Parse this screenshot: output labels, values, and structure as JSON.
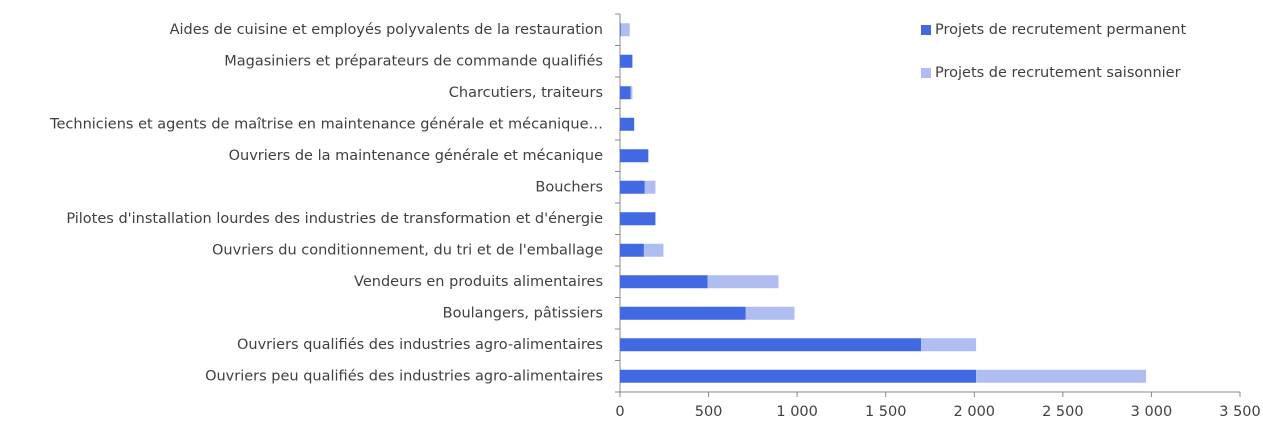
{
  "chart_data": {
    "type": "stacked_barh",
    "categories": [
      "Aides de cuisine et employés polyvalents de la restauration",
      "Magasiniers et préparateurs de commande qualifiés",
      "Charcutiers, traiteurs",
      "Techniciens et agents de maîtrise en maintenance générale et mécanique…",
      "Ouvriers de la maintenance générale et mécanique",
      "Bouchers",
      "Pilotes d'installation lourdes des industries de transformation et d'énergie",
      "Ouvriers du conditionnement, du tri et de l'emballage",
      "Vendeurs en produits alimentaires",
      "Boulangers, pâtissiers",
      "Ouvriers qualifiés des industries agro-alimentaires",
      "Ouvriers peu qualifiés des industries agro-alimentaires"
    ],
    "series": [
      {
        "name": "Projets de recrutement permanent",
        "color": "#4169e1",
        "values": [
          5,
          70,
          60,
          80,
          160,
          140,
          200,
          135,
          495,
          710,
          1700,
          2010
        ]
      },
      {
        "name": "Projets de recrutement saisonnier",
        "color": "#b0bdf0",
        "values": [
          50,
          0,
          10,
          0,
          0,
          60,
          0,
          110,
          400,
          275,
          310,
          960
        ]
      }
    ],
    "xlim": [
      0,
      3500
    ],
    "xticks": [
      0,
      500,
      {
        "value": 1000,
        "label": "1 000"
      },
      {
        "value": 1500,
        "label": "1 500"
      },
      {
        "value": 2000,
        "label": "2 000"
      },
      {
        "value": 2500,
        "label": "2 500"
      },
      {
        "value": 3000,
        "label": "3 000"
      },
      {
        "value": 3500,
        "label": "3 500"
      }
    ],
    "legend": "top-right"
  }
}
